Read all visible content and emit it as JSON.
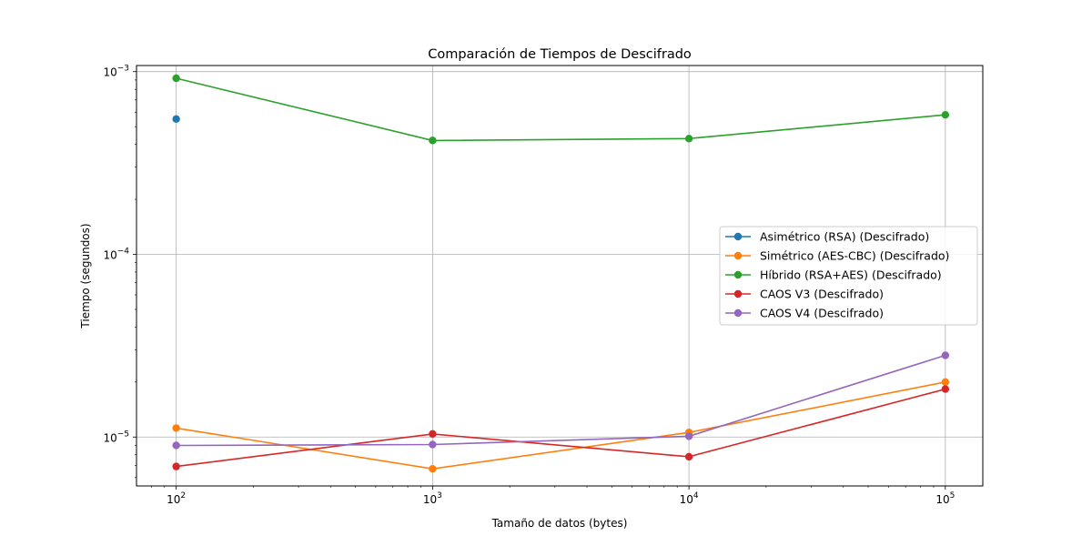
{
  "chart_data": {
    "type": "line",
    "title": "Comparación de Tiempos de Descifrado",
    "xlabel": "Tamaño de datos (bytes)",
    "ylabel": "Tiempo (segundos)",
    "xscale": "log",
    "yscale": "log",
    "xlim": [
      70,
      140000
    ],
    "ylim": [
      5.4e-06,
      0.00108
    ],
    "x": [
      100,
      1000,
      10000,
      100000
    ],
    "x_tick_labels": [
      {
        "value": 100,
        "base": "10",
        "exp": "2"
      },
      {
        "value": 1000,
        "base": "10",
        "exp": "3"
      },
      {
        "value": 10000,
        "base": "10",
        "exp": "4"
      },
      {
        "value": 100000,
        "base": "10",
        "exp": "5"
      }
    ],
    "y_tick_labels": [
      {
        "value": 1e-05,
        "base": "10",
        "exp": "−5"
      },
      {
        "value": 0.0001,
        "base": "10",
        "exp": "−4"
      },
      {
        "value": 0.001,
        "base": "10",
        "exp": "−3"
      }
    ],
    "grid": true,
    "legend_position": "center-right",
    "series": [
      {
        "name": "Asimétrico (RSA) (Descifrado)",
        "color": "#1f77b4",
        "values": [
          0.00055,
          null,
          null,
          null
        ]
      },
      {
        "name": "Simétrico (AES-CBC) (Descifrado)",
        "color": "#ff7f0e",
        "values": [
          1.12e-05,
          6.7e-06,
          1.06e-05,
          2e-05
        ]
      },
      {
        "name": "Híbrido (RSA+AES) (Descifrado)",
        "color": "#2ca02c",
        "values": [
          0.00092,
          0.00042,
          0.00043,
          0.00058
        ]
      },
      {
        "name": "CAOS V3 (Descifrado)",
        "color": "#d62728",
        "values": [
          6.9e-06,
          1.04e-05,
          7.8e-06,
          1.83e-05
        ]
      },
      {
        "name": "CAOS V4 (Descifrado)",
        "color": "#9467bd",
        "values": [
          9e-06,
          9.1e-06,
          1.01e-05,
          2.8e-05
        ]
      }
    ]
  }
}
